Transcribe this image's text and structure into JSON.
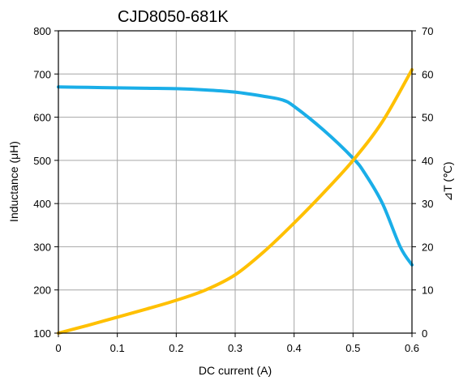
{
  "chart_data": {
    "type": "line",
    "title": "CJD8050-681K",
    "xlabel": "DC current (A)",
    "ylabel_left": "Inductance (μH)",
    "ylabel_right": "⊿T (℃)",
    "xlim": [
      0,
      0.6
    ],
    "ylim_left": [
      100,
      800
    ],
    "ylim_right": [
      0,
      70
    ],
    "x_ticks": [
      "0",
      "0.1",
      "0.2",
      "0.3",
      "0.4",
      "0.5",
      "0.6"
    ],
    "y_left_ticks": [
      "100",
      "200",
      "300",
      "400",
      "500",
      "600",
      "700",
      "800"
    ],
    "y_right_ticks": [
      "0",
      "10",
      "20",
      "30",
      "40",
      "50",
      "60",
      "70"
    ],
    "grid": true,
    "series": [
      {
        "axis": "left",
        "color": "#1aaee8",
        "x": [
          0,
          0.05,
          0.1,
          0.15,
          0.2,
          0.25,
          0.3,
          0.35,
          0.38,
          0.4,
          0.45,
          0.5,
          0.52,
          0.55,
          0.58,
          0.6
        ],
        "values": [
          670,
          669,
          668,
          667,
          666,
          663,
          658,
          648,
          640,
          625,
          570,
          505,
          470,
          400,
          300,
          258
        ]
      },
      {
        "axis": "right",
        "color": "#ffc000",
        "x": [
          0,
          0.05,
          0.1,
          0.15,
          0.2,
          0.25,
          0.3,
          0.35,
          0.4,
          0.45,
          0.5,
          0.55,
          0.6
        ],
        "values": [
          0,
          1.8,
          3.7,
          5.6,
          7.6,
          10,
          13.5,
          19,
          25.5,
          32.5,
          40,
          49,
          61
        ]
      }
    ]
  }
}
